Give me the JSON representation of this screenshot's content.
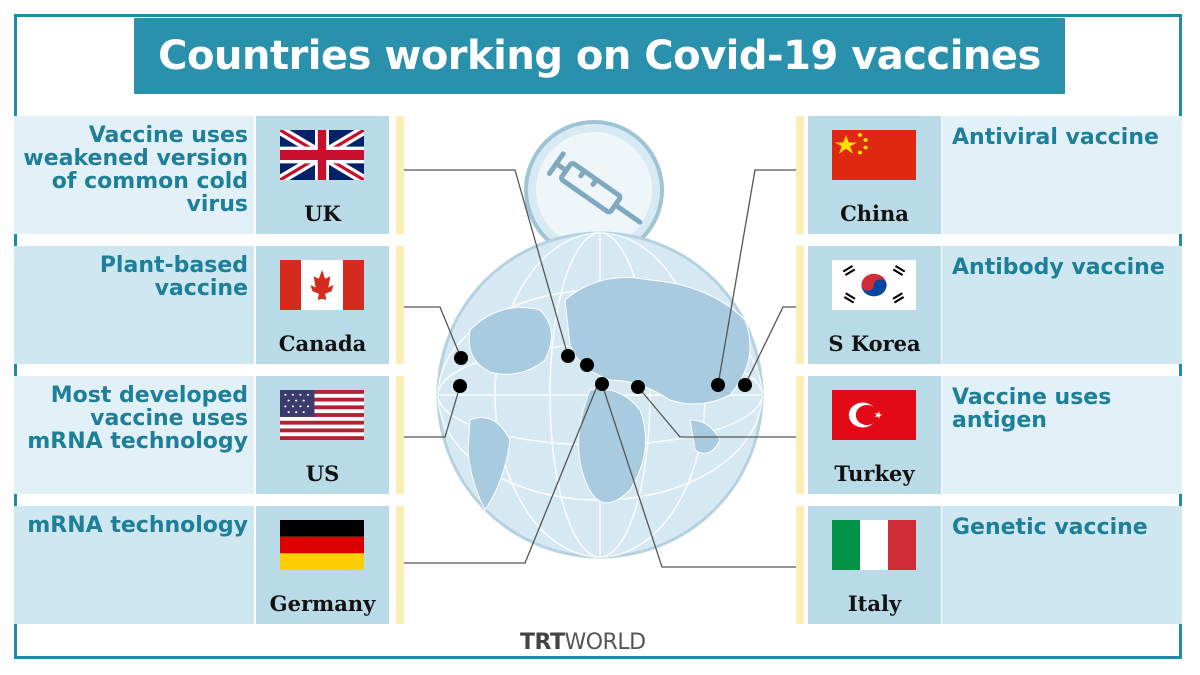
{
  "title": "Countries working on Covid-19 vaccines",
  "left_items": [
    {
      "country": "UK",
      "description": "Vaccine uses weakened version of common cold virus",
      "flag": "uk-flag"
    },
    {
      "country": "Canada",
      "description": "Plant-based vaccine",
      "flag": "canada-flag"
    },
    {
      "country": "US",
      "description": "Most developed vaccine uses mRNA technology",
      "flag": "us-flag"
    },
    {
      "country": "Germany",
      "description": "mRNA technology",
      "flag": "germany-flag"
    }
  ],
  "right_items": [
    {
      "country": "China",
      "description": "Antiviral vaccine",
      "flag": "china-flag"
    },
    {
      "country": "S Korea",
      "description": "Antibody vaccine",
      "flag": "south-korea-flag"
    },
    {
      "country": "Turkey",
      "description": "Vaccine uses antigen",
      "flag": "turkey-flag"
    },
    {
      "country": "Italy",
      "description": "Genetic vaccine",
      "flag": "italy-flag"
    }
  ],
  "logo": {
    "part1": "TRT",
    "part2": "WORLD"
  },
  "colors": {
    "accent": "#2a91ad",
    "frame": "#1e8ca7",
    "text": "#1e7f98",
    "globe": "#cfe3ef"
  }
}
